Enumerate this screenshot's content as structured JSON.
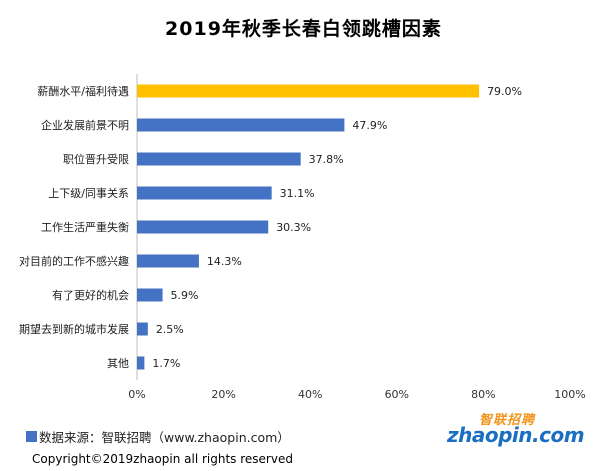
{
  "chart_data": {
    "type": "bar",
    "orientation": "horizontal",
    "title": "2019年秋季长春白领跳槽因素",
    "categories": [
      "薪酬水平/福利待遇",
      "企业发展前景不明",
      "职位晋升受限",
      "上下级/同事关系",
      "工作生活严重失衡",
      "对目前的工作不感兴趣",
      "有了更好的机会",
      "期望去到新的城市发展",
      "其他"
    ],
    "values": [
      79.0,
      47.9,
      37.8,
      31.1,
      30.3,
      14.3,
      5.9,
      2.5,
      1.7
    ],
    "value_labels": [
      "79.0%",
      "47.9%",
      "37.8%",
      "31.1%",
      "30.3%",
      "14.3%",
      "5.9%",
      "2.5%",
      "1.7%"
    ],
    "xlim": [
      0,
      100
    ],
    "x_ticks": [
      "0%",
      "20%",
      "40%",
      "60%",
      "80%",
      "100%"
    ],
    "x_tick_values": [
      0,
      20,
      40,
      60,
      80,
      100
    ],
    "grid": false,
    "colors": {
      "default": "#4472c4",
      "highlight": "#ffc000"
    },
    "highlight_index": 0
  },
  "footer": {
    "source": "数据来源：智联招聘（www.zhaopin.com）",
    "copyright": "Copyright©2019zhaopin all rights reserved"
  },
  "logo": {
    "cn": "智联招聘",
    "en": "zhaopin.com"
  }
}
